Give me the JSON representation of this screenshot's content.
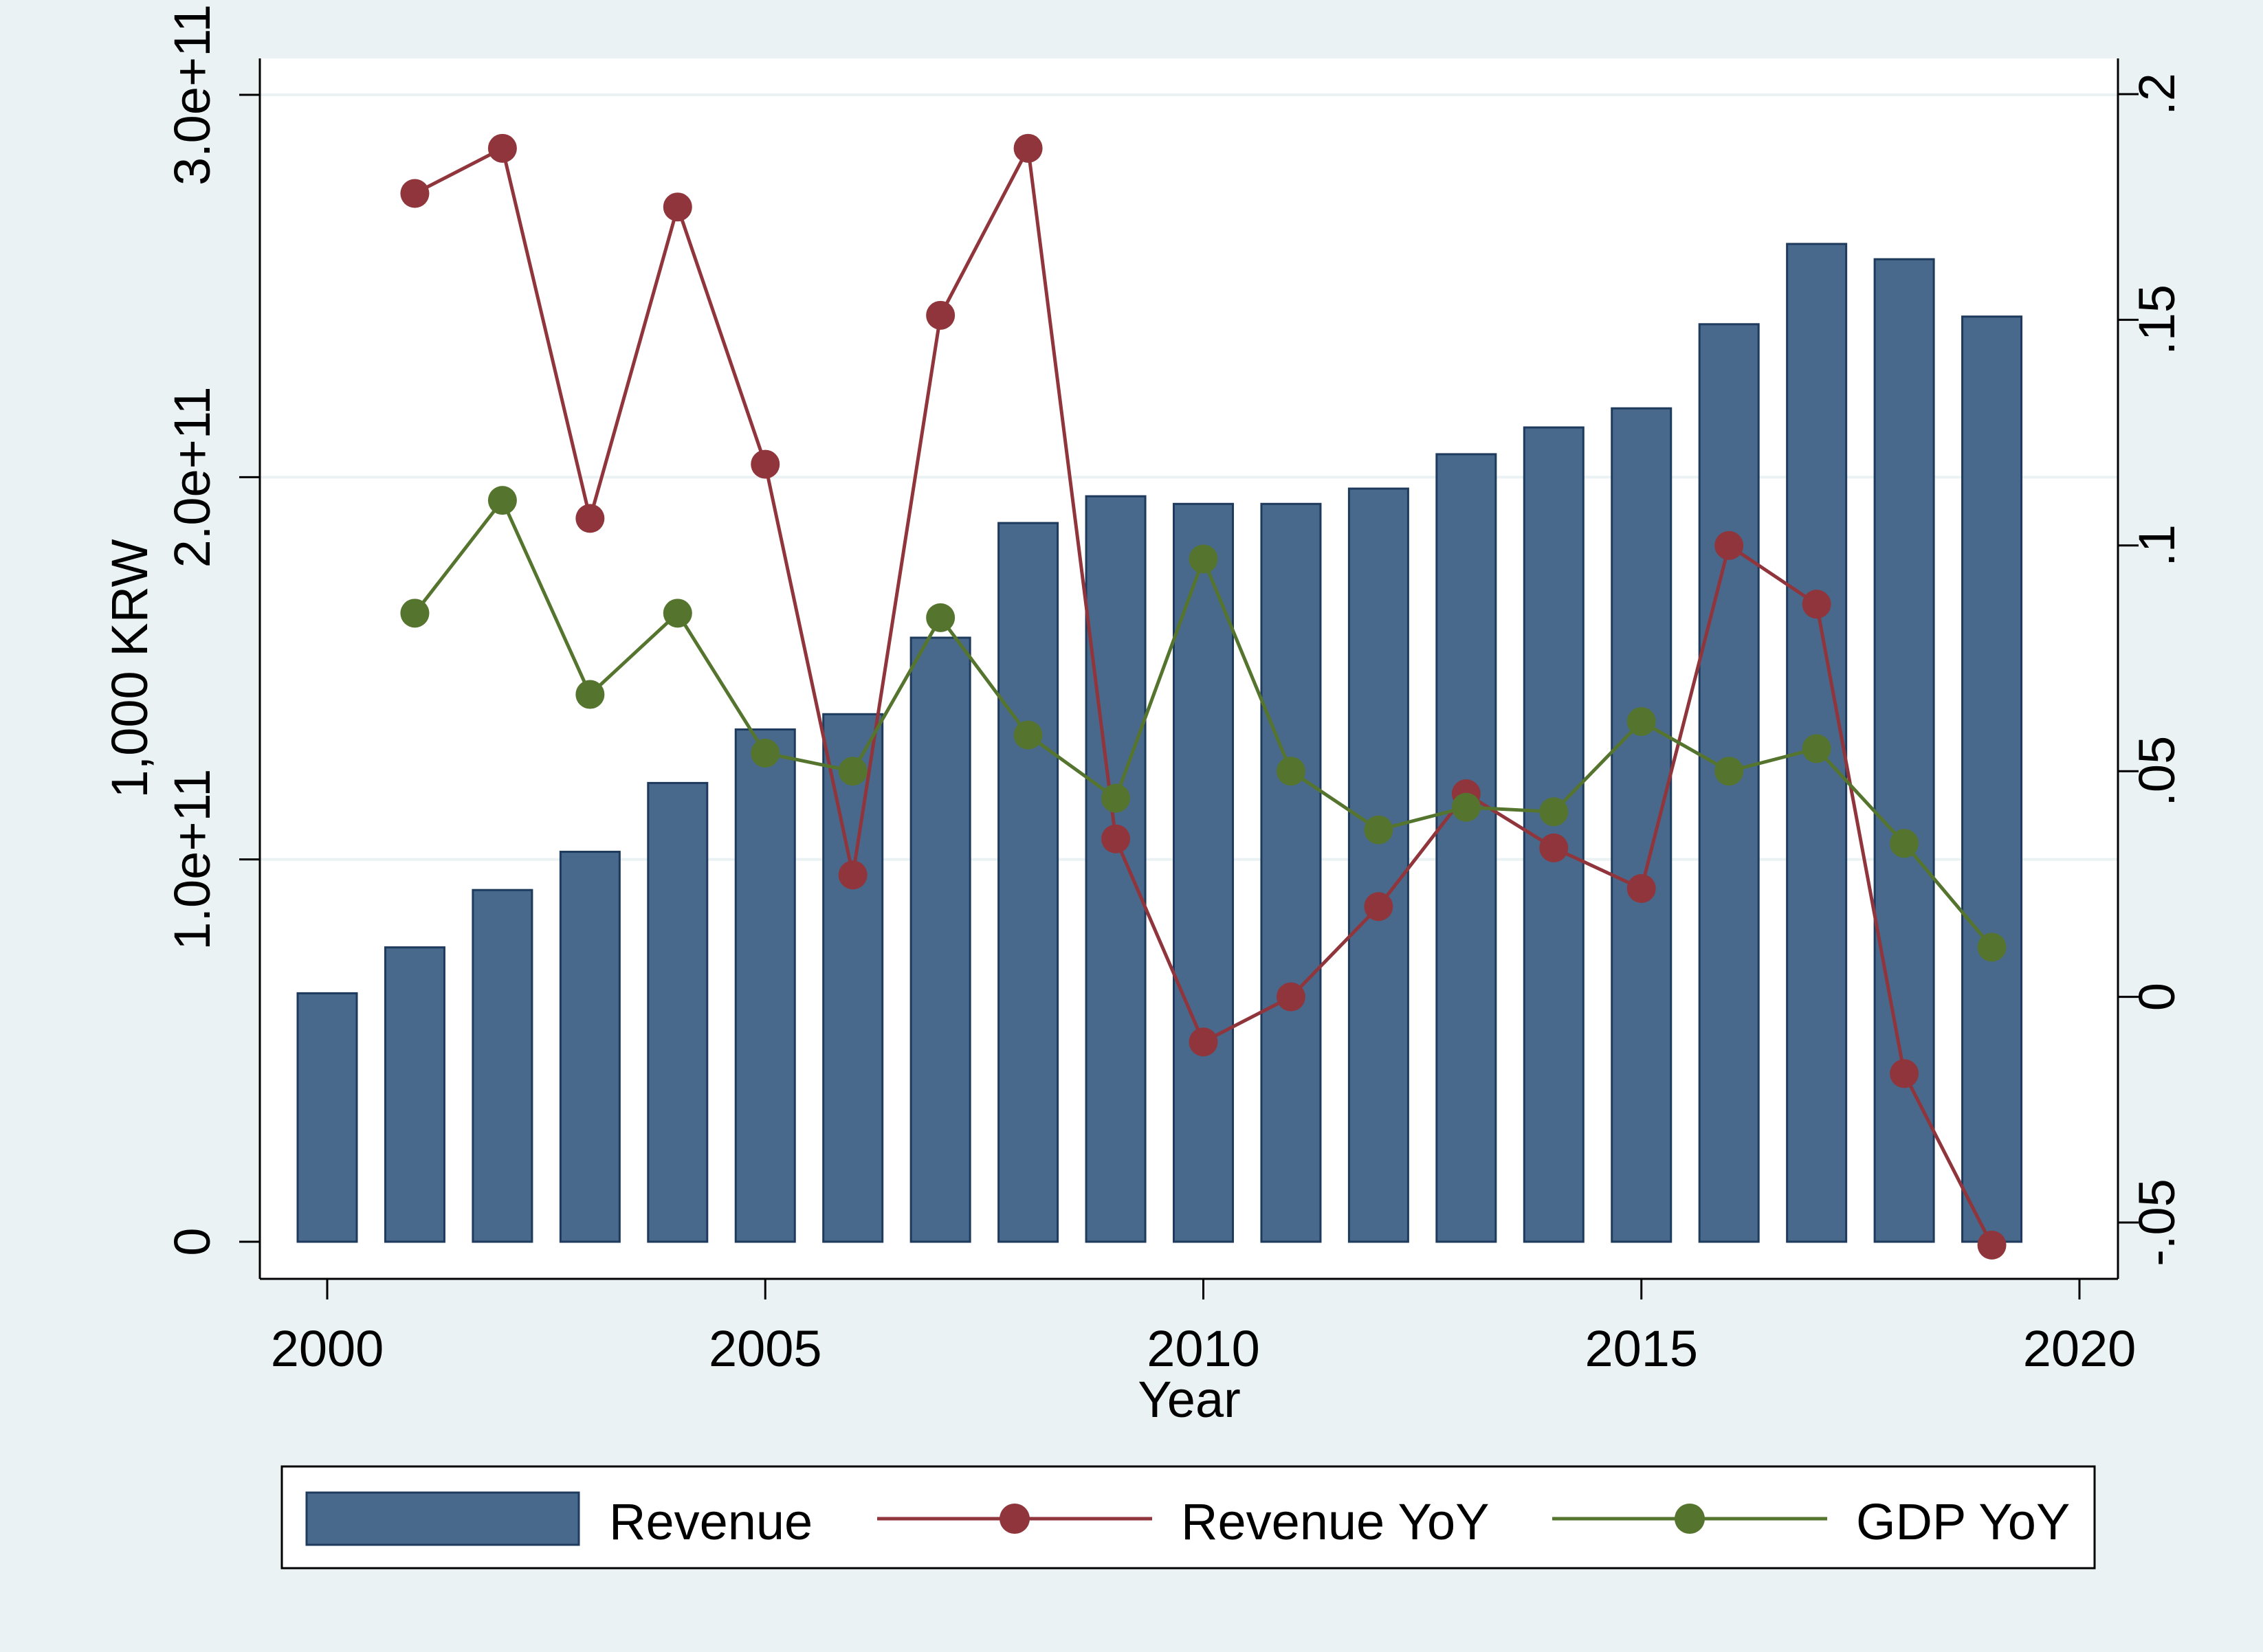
{
  "chart_data": {
    "type": "bar+line",
    "x": [
      2000,
      2001,
      2002,
      2003,
      2004,
      2005,
      2006,
      2007,
      2008,
      2009,
      2010,
      2011,
      2012,
      2013,
      2014,
      2015,
      2016,
      2017,
      2018,
      2019
    ],
    "xlabel": "Year",
    "ylabel_left": "1,000 KRW",
    "ylabel_right": "",
    "xlim": [
      2000,
      2020
    ],
    "ylim_left": [
      0,
      300000000000
    ],
    "ylim_right": [
      -0.05,
      0.2
    ],
    "x_ticks": [
      "2000",
      "2005",
      "2010",
      "2015",
      "2020"
    ],
    "x_tick_values": [
      2000,
      2005,
      2010,
      2015,
      2020
    ],
    "y_left_ticks": [
      "0",
      "1.0e+11",
      "2.0e+11",
      "3.0e+11"
    ],
    "y_left_tick_values": [
      0,
      100000000000,
      200000000000,
      300000000000
    ],
    "y_right_ticks": [
      "-.05",
      "0",
      ".05",
      ".1",
      ".15",
      ".2"
    ],
    "y_right_tick_values": [
      -0.05,
      0,
      0.05,
      0.1,
      0.15,
      0.2
    ],
    "grid": true,
    "legend_position": "bottom",
    "series": [
      {
        "name": "Revenue",
        "kind": "bar",
        "axis": "left",
        "color": "#48698c",
        "values": [
          65000000000,
          77000000000,
          92000000000,
          102000000000,
          120000000000,
          134000000000,
          138000000000,
          158000000000,
          188000000000,
          195000000000,
          193000000000,
          193000000000,
          197000000000,
          206000000000,
          213000000000,
          218000000000,
          240000000000,
          261000000000,
          257000000000,
          242000000000
        ]
      },
      {
        "name": "Revenue YoY",
        "kind": "line",
        "axis": "right",
        "color": "#90353b",
        "values": [
          null,
          0.178,
          0.188,
          0.106,
          0.175,
          0.118,
          0.027,
          0.151,
          0.188,
          0.035,
          -0.01,
          0.0,
          0.02,
          0.045,
          0.033,
          0.024,
          0.1,
          0.087,
          -0.017,
          -0.055
        ]
      },
      {
        "name": "GDP YoY",
        "kind": "line",
        "axis": "right",
        "color": "#55752f",
        "values": [
          null,
          0.085,
          0.11,
          0.067,
          0.085,
          0.054,
          0.05,
          0.084,
          0.058,
          0.044,
          0.097,
          0.05,
          0.037,
          0.042,
          0.041,
          0.061,
          0.05,
          0.055,
          0.034,
          0.011
        ]
      }
    ]
  }
}
